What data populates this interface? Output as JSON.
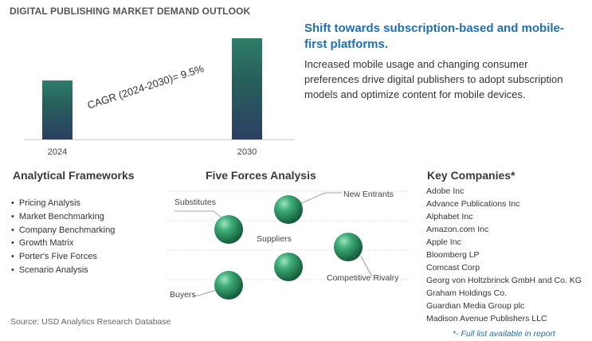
{
  "header": {
    "title": "DIGITAL PUBLISHING MARKET DEMAND OUTLOOK"
  },
  "chart_data": {
    "type": "bar",
    "categories": [
      "2024",
      "2030"
    ],
    "values": [
      1.0,
      1.72
    ],
    "annotation": "CAGR (2024-2030)=  9.5%",
    "grid": false
  },
  "highlight": {
    "headline": "Shift towards subscription-based and mobile-first platforms.",
    "description": "Increased mobile usage and changing consumer preferences drive digital publishers to adopt subscription models and optimize content for mobile devices."
  },
  "frameworks": {
    "title": "Analytical Frameworks",
    "items": [
      "Pricing Analysis",
      "Market Benchmarking",
      "Company Benchmarking",
      "Growth Matrix",
      "Porter's Five Forces",
      "Scenario Analysis"
    ]
  },
  "five_forces": {
    "title": "Five Forces Analysis",
    "labels": [
      "Substitutes",
      "New Entrants",
      "Suppliers",
      "Competitive Rivalry",
      "Buyers"
    ]
  },
  "companies": {
    "title": "Key Companies*",
    "items": [
      "Adobe Inc",
      "Advance Publications Inc",
      "Alphabet Inc",
      "Amazon.com Inc",
      "Apple Inc",
      "Bloomberg LP",
      "Comcast Corp",
      "Georg von Holtzbrinck GmbH and Co. KG",
      "Graham Holdings Co.",
      "Guardian Media Group plc",
      "Madison Avenue Publishers LLC"
    ],
    "note": "*- Full list available in report"
  },
  "footer": {
    "source": "Source: USD Analytics Research Database"
  }
}
